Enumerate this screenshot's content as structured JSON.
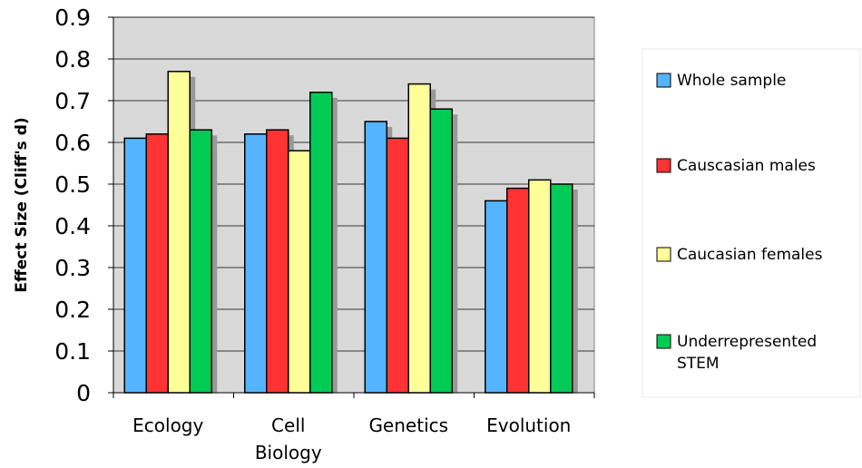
{
  "chart_data": {
    "type": "bar",
    "ylabel": "Effect Size (Cliff's d)",
    "xlabel": "",
    "ylim": [
      0,
      0.9
    ],
    "yticks": [
      "0",
      "0.1",
      "0.2",
      "0.3",
      "0.4",
      "0.5",
      "0.6",
      "0.7",
      "0.8",
      "0.9"
    ],
    "categories": [
      [
        "Ecology"
      ],
      [
        "Cell",
        "Biology"
      ],
      [
        "Genetics"
      ],
      [
        "Evolution"
      ]
    ],
    "series": [
      {
        "name": "Whole sample",
        "color": "#55b4ff",
        "values": [
          0.61,
          0.62,
          0.65,
          0.46
        ]
      },
      {
        "name": "Causcasian males",
        "color": "#ff3333",
        "values": [
          0.62,
          0.63,
          0.61,
          0.49
        ]
      },
      {
        "name": "Caucasian females",
        "color": "#ffff99",
        "values": [
          0.77,
          0.58,
          0.74,
          0.51
        ]
      },
      {
        "name": "Underrepresented STEM",
        "legend_lines": [
          "Underrepresented",
          "STEM"
        ],
        "color": "#00cc55",
        "values": [
          0.63,
          0.72,
          0.68,
          0.5
        ]
      }
    ],
    "grid": true,
    "plot_background": "#d9d9d9",
    "legend_position": "right"
  }
}
